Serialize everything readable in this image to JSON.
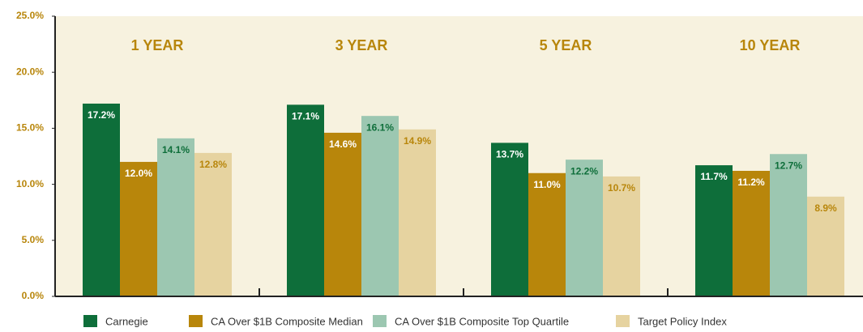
{
  "chart_data": {
    "type": "bar",
    "categories": [
      "1 YEAR",
      "3 YEAR",
      "5 YEAR",
      "10 YEAR"
    ],
    "series": [
      {
        "name": "Carnegie",
        "color": "#0e6e3a",
        "values": [
          17.2,
          17.1,
          13.7,
          11.7
        ],
        "value_labels": [
          "17.2%",
          "17.1%",
          "13.7%",
          "11.7%"
        ]
      },
      {
        "name": "CA Over $1B Composite Median",
        "color": "#b8860b",
        "values": [
          12.0,
          14.6,
          11.0,
          11.2
        ],
        "value_labels": [
          "12.0%",
          "14.6%",
          "11.0%",
          "11.2%"
        ]
      },
      {
        "name": "CA Over $1B Composite Top Quartile",
        "color": "#9cc7b1",
        "values": [
          14.1,
          16.1,
          12.2,
          12.7
        ],
        "value_labels": [
          "14.1%",
          "16.1%",
          "12.2%",
          "12.7%"
        ]
      },
      {
        "name": "Target Policy Index",
        "color": "#e6d3a0",
        "values": [
          12.8,
          14.9,
          10.7,
          8.9
        ],
        "value_labels": [
          "12.8%",
          "14.9%",
          "10.7%",
          "8.9%"
        ]
      }
    ],
    "ylim": [
      0,
      25
    ],
    "yticks": [
      {
        "value": 0,
        "label": "0.0%"
      },
      {
        "value": 5,
        "label": "5.0%"
      },
      {
        "value": 10,
        "label": "10.0%"
      },
      {
        "value": 15,
        "label": "15.0%"
      },
      {
        "value": 20,
        "label": "20.0%"
      },
      {
        "value": 25,
        "label": "25.0%"
      }
    ],
    "grid": false
  }
}
